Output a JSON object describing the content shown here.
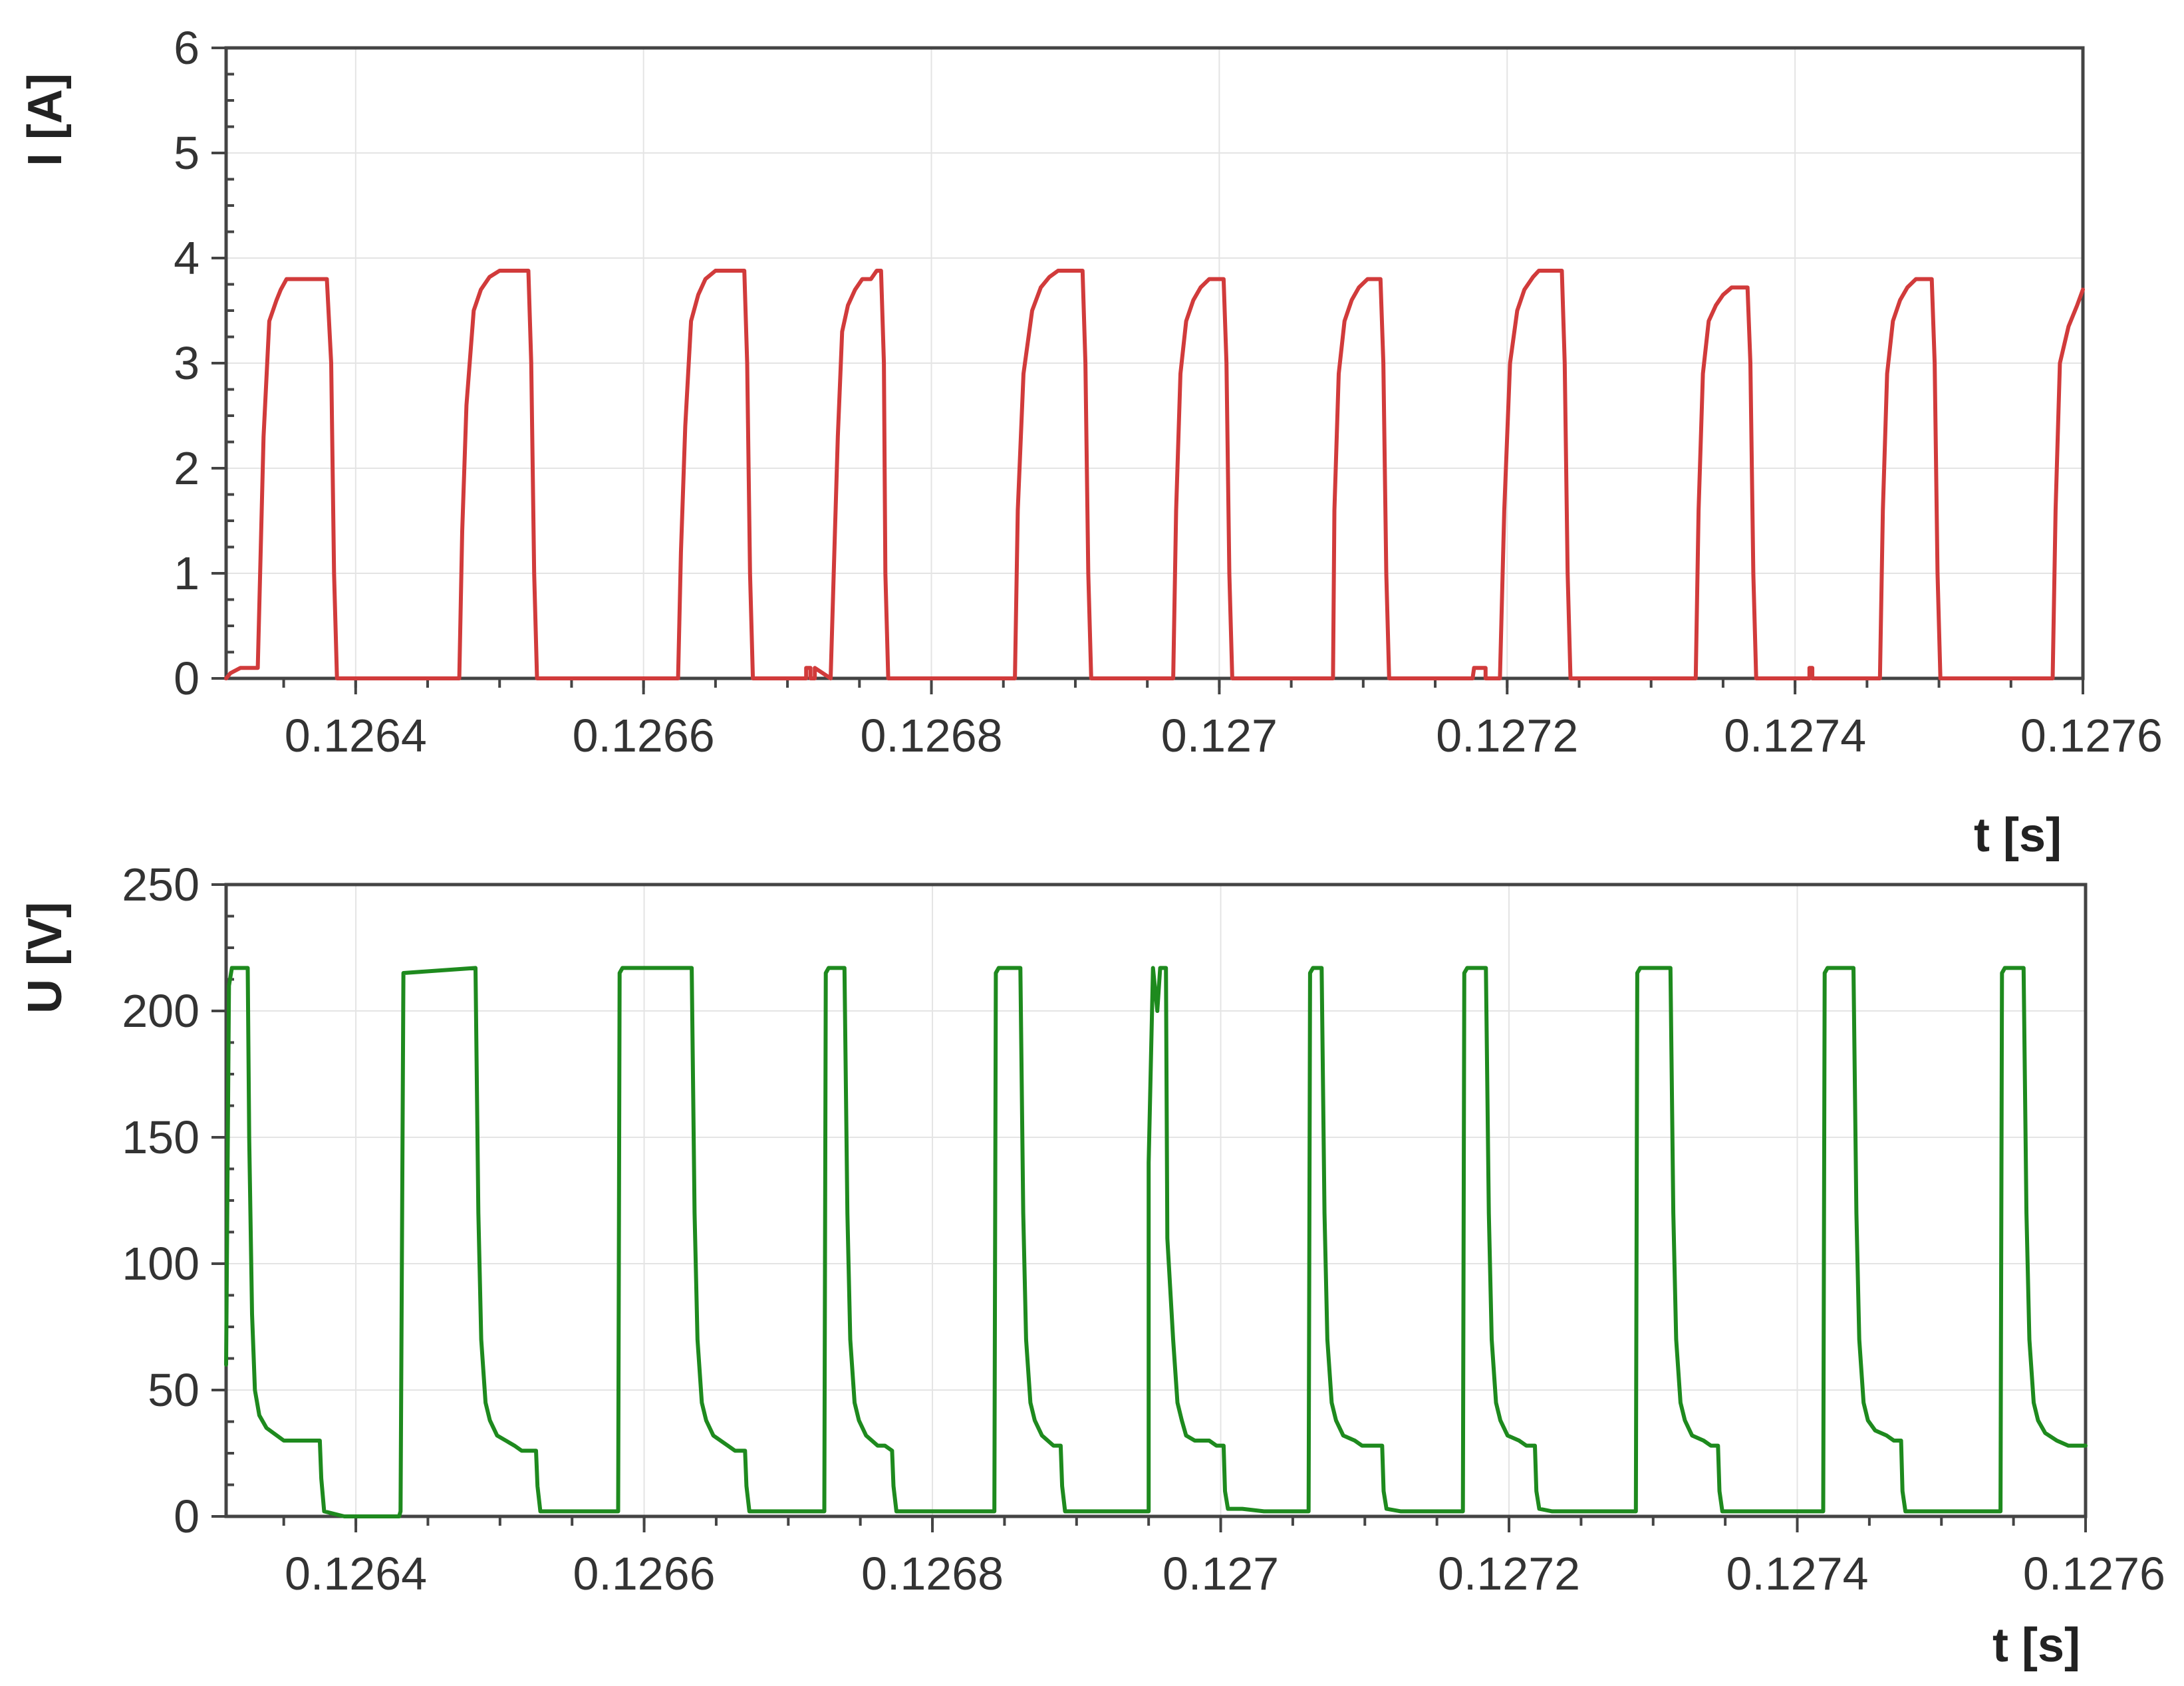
{
  "chart_data": [
    {
      "type": "line",
      "xlabel": "t [s]",
      "ylabel": "I [A]",
      "xlim": [
        0.12631,
        0.1276
      ],
      "ylim": [
        0,
        6
      ],
      "xticks": [
        0.1264,
        0.1266,
        0.1268,
        0.127,
        0.1272,
        0.1274,
        0.1276
      ],
      "xtick_labels": [
        "0.1264",
        "0.1266",
        "0.1268",
        "0.127",
        "0.1272",
        "0.1274",
        "0.1276"
      ],
      "yticks": [
        0,
        1,
        2,
        3,
        4,
        5,
        6
      ],
      "ytick_labels": [
        "0",
        "1",
        "2",
        "3",
        "4",
        "5",
        "6"
      ],
      "grid": true,
      "color": "#d13b3b",
      "pulse_peaks": [
        3.8,
        3.88,
        3.88,
        3.88,
        3.88,
        3.8,
        3.8,
        3.88,
        3.72,
        3.8
      ],
      "series": [
        {
          "x": [
            0.12631,
            0.126313,
            0.12632,
            0.126325,
            0.126328,
            0.126332,
            0.126336,
            0.12634,
            0.126345,
            0.126348,
            0.126352,
            0.126358,
            0.12636,
            0.126375,
            0.12638,
            0.126383,
            0.126385,
            0.126387,
            0.126472,
            0.126474,
            0.126477,
            0.126482,
            0.126487,
            0.126493,
            0.1265,
            0.12651,
            0.12652,
            0.126522,
            0.126524,
            0.126526,
            0.126624,
            0.126626,
            0.126629,
            0.126633,
            0.126638,
            0.126643,
            0.12665,
            0.12666,
            0.12667,
            0.126672,
            0.126674,
            0.126676,
            0.126713,
            0.126713,
            0.126714,
            0.126716,
            0.126716,
            0.126717,
            0.126719,
            0.126719,
            0.12673,
            0.126733,
            0.126735,
            0.126738,
            0.126742,
            0.126747,
            0.126752,
            0.126758,
            0.126762,
            0.126765,
            0.126767,
            0.126768,
            0.12677,
            0.126858,
            0.12686,
            0.126864,
            0.12687,
            0.126876,
            0.126882,
            0.126888,
            0.126898,
            0.126905,
            0.126907,
            0.126909,
            0.126911,
            0.126968,
            0.12697,
            0.126973,
            0.126977,
            0.126982,
            0.126987,
            0.126993,
            0.126998,
            0.127003,
            0.127005,
            0.127007,
            0.127009,
            0.127079,
            0.12708,
            0.127083,
            0.127087,
            0.127092,
            0.127097,
            0.127103,
            0.127107,
            0.127112,
            0.127114,
            0.127116,
            0.127118,
            0.127176,
            0.127177,
            0.127185,
            0.127185,
            0.127195,
            0.127198,
            0.127202,
            0.127207,
            0.127212,
            0.127218,
            0.127222,
            0.12723,
            0.127238,
            0.12724,
            0.127242,
            0.127244,
            0.127331,
            0.127333,
            0.127336,
            0.12734,
            0.127345,
            0.12735,
            0.127356,
            0.127362,
            0.127367,
            0.127369,
            0.127371,
            0.127373,
            0.12741,
            0.12741,
            0.127412,
            0.127412,
            0.127459,
            0.127461,
            0.127464,
            0.127468,
            0.127473,
            0.127478,
            0.127484,
            0.12749,
            0.127495,
            0.127497,
            0.127499,
            0.127501,
            0.127579,
            0.127581,
            0.127584,
            0.12759,
            0.127596,
            0.1276
          ],
          "y": [
            0,
            0.05,
            0.1,
            0.1,
            0.1,
            0.1,
            2.3,
            3.4,
            3.6,
            3.7,
            3.8,
            3.8,
            3.8,
            3.8,
            3.8,
            3.0,
            1.0,
            0,
            0,
            1.4,
            2.6,
            3.5,
            3.7,
            3.82,
            3.88,
            3.88,
            3.88,
            3.0,
            1.0,
            0,
            0,
            1.2,
            2.4,
            3.4,
            3.65,
            3.8,
            3.88,
            3.88,
            3.88,
            3.0,
            1.0,
            0,
            0,
            0.1,
            0.1,
            0.1,
            0,
            0,
            0,
            0.1,
            0,
            1.4,
            2.3,
            3.3,
            3.55,
            3.7,
            3.8,
            3.8,
            3.88,
            3.88,
            3.0,
            1.0,
            0,
            0,
            1.6,
            2.9,
            3.5,
            3.72,
            3.82,
            3.88,
            3.88,
            3.88,
            3.0,
            1.0,
            0,
            0,
            1.6,
            2.9,
            3.4,
            3.6,
            3.72,
            3.8,
            3.8,
            3.8,
            3.0,
            1.0,
            0,
            0,
            1.6,
            2.9,
            3.4,
            3.6,
            3.72,
            3.8,
            3.8,
            3.8,
            3.0,
            1.0,
            0,
            0,
            0.1,
            0.1,
            0,
            0,
            1.6,
            3.0,
            3.5,
            3.7,
            3.82,
            3.88,
            3.88,
            3.88,
            3.0,
            1.0,
            0,
            0,
            1.6,
            2.9,
            3.4,
            3.55,
            3.65,
            3.72,
            3.72,
            3.72,
            3.0,
            1.0,
            0,
            0,
            0.1,
            0.1,
            0,
            0,
            1.6,
            2.9,
            3.4,
            3.6,
            3.72,
            3.8,
            3.8,
            3.8,
            3.0,
            1.0,
            0,
            0,
            1.6,
            3.0,
            3.35,
            3.55,
            3.7
          ]
        }
      ]
    },
    {
      "type": "line",
      "xlabel": "t [s]",
      "ylabel": "U [V]",
      "xlim": [
        0.12631,
        0.1276
      ],
      "ylim": [
        0,
        250
      ],
      "xticks": [
        0.1264,
        0.1266,
        0.1268,
        0.127,
        0.1272,
        0.1274,
        0.1276
      ],
      "xtick_labels": [
        "0.1264",
        "0.1266",
        "0.1268",
        "0.127",
        "0.1272",
        "0.1274",
        "0.1276"
      ],
      "yticks": [
        0,
        50,
        100,
        150,
        200,
        250
      ],
      "ytick_labels": [
        "0",
        "50",
        "100",
        "150",
        "200",
        "250"
      ],
      "grid": true,
      "color": "#1e8a1e",
      "high_level": 217,
      "series": [
        {
          "x": [
            0.12631,
            0.126312,
            0.126314,
            0.126325,
            0.126326,
            0.126328,
            0.12633,
            0.126333,
            0.126338,
            0.12635,
            0.126355,
            0.126375,
            0.126376,
            0.126378,
            0.126392,
            0.1264,
            0.12643,
            0.126431,
            0.126433,
            0.126483,
            0.126485,
            0.126487,
            0.12649,
            0.126493,
            0.126498,
            0.12651,
            0.126515,
            0.126525,
            0.126526,
            0.126528,
            0.126582,
            0.126583,
            0.126585,
            0.126633,
            0.126635,
            0.126637,
            0.12664,
            0.126643,
            0.126648,
            0.126658,
            0.126663,
            0.12667,
            0.126671,
            0.126673,
            0.126725,
            0.126726,
            0.126728,
            0.126739,
            0.126741,
            0.126743,
            0.126746,
            0.126749,
            0.126754,
            0.126762,
            0.126767,
            0.126772,
            0.126773,
            0.126775,
            0.126843,
            0.126844,
            0.126846,
            0.126861,
            0.126863,
            0.126865,
            0.126868,
            0.126871,
            0.126876,
            0.126884,
            0.126889,
            0.12689,
            0.126892,
            0.126894,
            0.12691,
            0.12695,
            0.12695,
            0.126953,
            0.126956,
            0.126958,
            0.126962,
            0.126963,
            0.126967,
            0.12697,
            0.126973,
            0.126976,
            0.126982,
            0.126992,
            0.126997,
            0.127002,
            0.127003,
            0.127005,
            0.127015,
            0.12703,
            0.127061,
            0.127062,
            0.127064,
            0.12707,
            0.127072,
            0.127074,
            0.127077,
            0.12708,
            0.127085,
            0.127093,
            0.127098,
            0.127112,
            0.127113,
            0.127115,
            0.127125,
            0.127168,
            0.127169,
            0.127171,
            0.127184,
            0.127186,
            0.127188,
            0.127191,
            0.127194,
            0.127199,
            0.127207,
            0.127212,
            0.127218,
            0.127219,
            0.127221,
            0.12723,
            0.127288,
            0.127289,
            0.127291,
            0.127312,
            0.127314,
            0.127316,
            0.127319,
            0.127322,
            0.127327,
            0.127335,
            0.12734,
            0.127345,
            0.127346,
            0.127348,
            0.127418,
            0.127419,
            0.127421,
            0.127439,
            0.127441,
            0.127443,
            0.127446,
            0.127449,
            0.127454,
            0.127462,
            0.127467,
            0.127472,
            0.127473,
            0.127475,
            0.127541,
            0.127542,
            0.127544,
            0.127557,
            0.127559,
            0.127561,
            0.127564,
            0.127567,
            0.127572,
            0.12758,
            0.127588,
            0.1276
          ],
          "y": [
            60,
            210,
            217,
            217,
            150,
            80,
            50,
            40,
            35,
            30,
            30,
            30,
            15,
            2,
            0,
            0,
            0,
            2,
            215,
            217,
            120,
            70,
            45,
            38,
            32,
            28,
            26,
            26,
            12,
            2,
            2,
            215,
            217,
            217,
            120,
            70,
            45,
            38,
            32,
            28,
            26,
            26,
            12,
            2,
            2,
            215,
            217,
            217,
            120,
            70,
            45,
            38,
            32,
            28,
            28,
            26,
            12,
            2,
            2,
            215,
            217,
            217,
            120,
            70,
            45,
            38,
            32,
            28,
            28,
            12,
            2,
            2,
            2,
            2,
            140,
            217,
            200,
            217,
            217,
            110,
            70,
            45,
            38,
            32,
            30,
            30,
            28,
            28,
            10,
            3,
            3,
            2,
            2,
            215,
            217,
            217,
            120,
            70,
            45,
            38,
            32,
            30,
            28,
            28,
            10,
            3,
            2,
            2,
            215,
            217,
            217,
            120,
            70,
            45,
            38,
            32,
            30,
            28,
            28,
            10,
            3,
            2,
            2,
            215,
            217,
            217,
            120,
            70,
            45,
            38,
            32,
            30,
            28,
            28,
            10,
            2,
            2,
            215,
            217,
            217,
            120,
            70,
            45,
            38,
            34,
            32,
            30,
            30,
            10,
            2,
            2,
            215,
            217,
            217,
            120,
            70,
            45,
            38,
            33,
            30,
            28,
            28
          ]
        }
      ]
    }
  ]
}
